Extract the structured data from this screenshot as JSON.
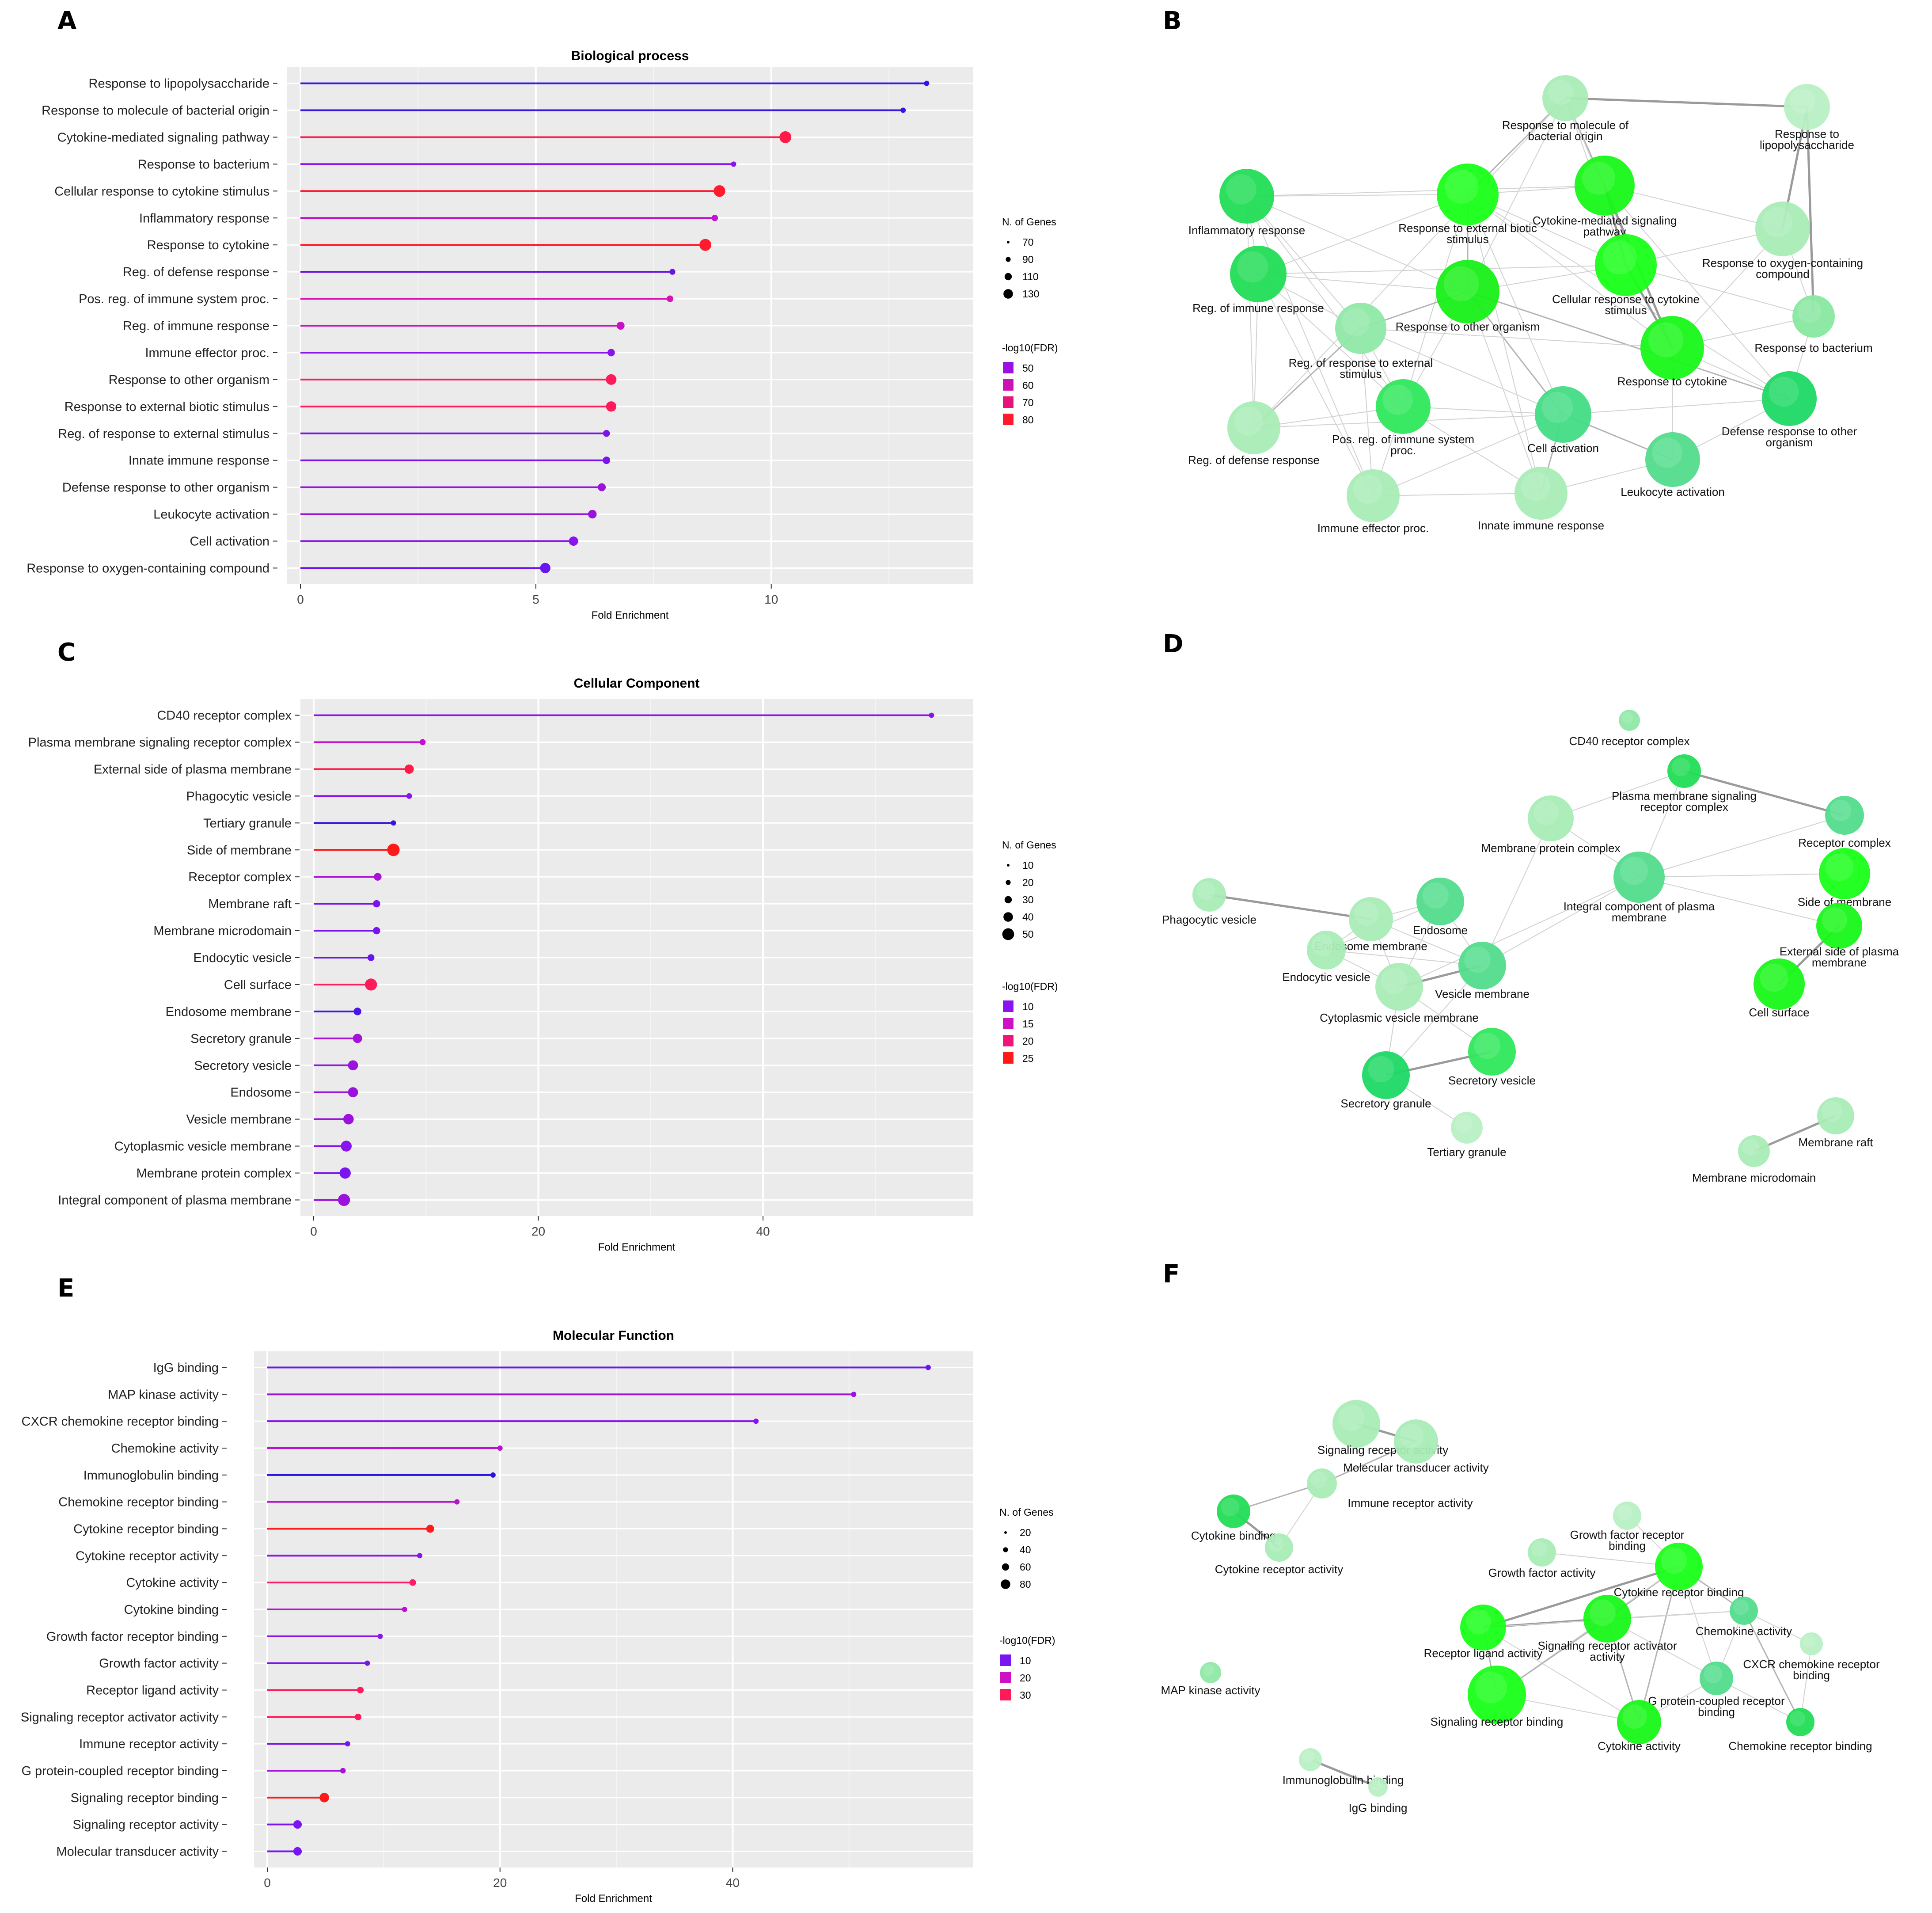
{
  "panels": {
    "A": "A",
    "B": "B",
    "C": "C",
    "D": "D",
    "E": "E",
    "F": "F"
  },
  "chart_data": [
    {
      "id": "A",
      "type": "lollipop",
      "title": "Biological process",
      "xlabel": "Fold Enrichment",
      "xlim": [
        0,
        14
      ],
      "xticks": [
        0,
        5,
        10
      ],
      "size_legend": {
        "title": "N. of Genes",
        "values": [
          70,
          90,
          110,
          130
        ]
      },
      "color_legend": {
        "title": "-log10(FDR)",
        "items": [
          {
            "label": "50",
            "color": "#9b11e0"
          },
          {
            "label": "60",
            "color": "#cc12b4"
          },
          {
            "label": "70",
            "color": "#e8137a"
          },
          {
            "label": "80",
            "color": "#ff1a2e"
          }
        ]
      },
      "categories": [
        "Response to lipopolysaccharide",
        "Response to molecule of bacterial origin",
        "Cytokine-mediated signaling pathway",
        "Response to bacterium",
        "Cellular response to cytokine stimulus",
        "Inflammatory response",
        "Response to cytokine",
        "Reg. of defense response",
        "Pos. reg. of immune system proc.",
        "Reg. of immune response",
        "Immune effector proc.",
        "Response to other organism",
        "Response to external biotic stimulus",
        "Reg. of response to external stimulus",
        "Innate immune response",
        "Defense response to other organism",
        "Leukocyte activation",
        "Cell activation",
        "Response to oxygen-containing compound"
      ],
      "values": [
        13.3,
        12.8,
        10.3,
        9.2,
        8.9,
        8.8,
        8.6,
        7.9,
        7.85,
        6.8,
        6.6,
        6.6,
        6.6,
        6.5,
        6.5,
        6.4,
        6.2,
        5.8,
        5.2
      ],
      "genes": [
        60,
        62,
        120,
        68,
        118,
        78,
        120,
        75,
        80,
        90,
        86,
        110,
        108,
        82,
        86,
        90,
        95,
        100,
        108
      ],
      "colors": [
        "#3a14e0",
        "#3a14e0",
        "#ff1a48",
        "#8a14f0",
        "#ff1a2e",
        "#c212d0",
        "#ff1a2e",
        "#6a14e6",
        "#d812b4",
        "#c812c4",
        "#8a14ec",
        "#ff1a5a",
        "#ff1a5a",
        "#7a14ec",
        "#7a14ec",
        "#9a12dc",
        "#9a12dc",
        "#8a14ec",
        "#6a14f0"
      ]
    },
    {
      "id": "C",
      "type": "lollipop",
      "title": "Cellular Component",
      "xlabel": "Fold Enrichment",
      "xlim": [
        0,
        57.5
      ],
      "xticks": [
        0,
        20,
        40
      ],
      "size_legend": {
        "title": "N. of Genes",
        "values": [
          10,
          20,
          30,
          40,
          50
        ]
      },
      "color_legend": {
        "title": "-log10(FDR)",
        "items": [
          {
            "label": "10",
            "color": "#8a14f0"
          },
          {
            "label": "15",
            "color": "#cc12c4"
          },
          {
            "label": "20",
            "color": "#ee1478"
          },
          {
            "label": "25",
            "color": "#ff1a1a"
          }
        ]
      },
      "categories": [
        "CD40 receptor complex",
        "Plasma membrane signaling receptor complex",
        "External side of plasma membrane",
        "Phagocytic vesicle",
        "Tertiary granule",
        "Side of membrane",
        "Receptor complex",
        "Membrane raft",
        "Membrane microdomain",
        "Endocytic vesicle",
        "Cell surface",
        "Endosome membrane",
        "Secretory granule",
        "Secretory vesicle",
        "Endosome",
        "Vesicle membrane",
        "Cytoplasmic vesicle membrane",
        "Membrane protein complex",
        "Integral component of plasma membrane"
      ],
      "values": [
        55,
        9.7,
        8.5,
        8.5,
        7.1,
        7.1,
        5.7,
        5.6,
        5.6,
        5.1,
        5.1,
        3.9,
        3.9,
        3.5,
        3.5,
        3.1,
        2.9,
        2.8,
        2.7
      ],
      "genes": [
        4,
        14,
        30,
        12,
        10,
        46,
        22,
        20,
        20,
        18,
        44,
        22,
        30,
        34,
        34,
        36,
        38,
        40,
        44
      ],
      "colors": [
        "#8a14f0",
        "#c212d0",
        "#ff1a48",
        "#8a14f0",
        "#3a14e0",
        "#ff1a1a",
        "#a812d8",
        "#7a14ec",
        "#7a14ec",
        "#6a14f0",
        "#ff1a5a",
        "#4a14e6",
        "#a812d8",
        "#9a12dc",
        "#9a12dc",
        "#9a12dc",
        "#8a14ec",
        "#7a14f0",
        "#9a12dc"
      ]
    },
    {
      "id": "E",
      "type": "lollipop",
      "title": "Molecular Function",
      "xlabel": "Fold Enrichment",
      "xlim": [
        0,
        59.5
      ],
      "xticks": [
        0,
        20,
        40
      ],
      "size_legend": {
        "title": "N. of Genes",
        "values": [
          20,
          40,
          60,
          80
        ]
      },
      "color_legend": {
        "title": "-log10(FDR)",
        "items": [
          {
            "label": "10",
            "color": "#7a14f0"
          },
          {
            "label": "20",
            "color": "#cc12c4"
          },
          {
            "label": "30",
            "color": "#ff1a5a"
          }
        ]
      },
      "categories": [
        "IgG binding",
        "MAP kinase activity",
        "CXCR chemokine receptor binding",
        "Chemokine activity",
        "Immunoglobulin binding",
        "Chemokine receptor binding",
        "Cytokine receptor binding",
        "Cytokine receptor activity",
        "Cytokine activity",
        "Cytokine binding",
        "Growth factor receptor binding",
        "Growth factor activity",
        "Receptor ligand activity",
        "Signaling receptor activator activity",
        "Immune receptor activity",
        "G protein-coupled receptor binding",
        "Signaling receptor binding",
        "Signaling receptor activity",
        "Molecular transducer activity"
      ],
      "values": [
        56.8,
        50.4,
        42,
        20,
        19.4,
        16.3,
        14,
        13.1,
        12.5,
        11.8,
        9.7,
        8.6,
        8,
        7.8,
        6.9,
        6.5,
        4.9,
        2.6,
        2.6
      ],
      "genes": [
        6,
        8,
        10,
        16,
        8,
        20,
        40,
        18,
        30,
        16,
        16,
        18,
        30,
        30,
        18,
        22,
        52,
        44,
        44
      ],
      "colors": [
        "#6a14f0",
        "#9a12dc",
        "#8a14f0",
        "#b812d0",
        "#2a14e0",
        "#b812d0",
        "#ff1a1a",
        "#8a14ec",
        "#ff1a6a",
        "#b812d0",
        "#8a14ec",
        "#7a14ec",
        "#ff1a5a",
        "#ff1a5a",
        "#7a14ec",
        "#a812d8",
        "#ff1a1a",
        "#7a14f0",
        "#7a14f0"
      ]
    }
  ],
  "networks": [
    {
      "id": "B",
      "nodes": [
        {
          "label": "Response to molecule of bacterial origin",
          "lines": [
            "Response to molecule of",
            "bacterial origin"
          ]
        },
        {
          "label": "Response to lipopolysaccharide",
          "lines": [
            "Response to",
            "lipopolysaccharide"
          ]
        },
        {
          "label": "Inflammatory response",
          "lines": [
            "Inflammatory response"
          ]
        },
        {
          "label": "Response to external biotic stimulus",
          "lines": [
            "Response to external biotic",
            "stimulus"
          ]
        },
        {
          "label": "Cytokine-mediated signaling pathway",
          "lines": [
            "Cytokine-mediated signaling",
            "pathway"
          ]
        },
        {
          "label": "Response to oxygen-containing compound",
          "lines": [
            "Response to oxygen-containing",
            "compound"
          ]
        },
        {
          "label": "Reg. of immune response",
          "lines": [
            "Reg. of immune response"
          ]
        },
        {
          "label": "Response to other organism",
          "lines": [
            "Response to other organism"
          ]
        },
        {
          "label": "Cellular response to cytokine stimulus",
          "lines": [
            "Cellular response to cytokine",
            "stimulus"
          ]
        },
        {
          "label": "Reg. of response to external stimulus",
          "lines": [
            "Reg. of response to external",
            "stimulus"
          ]
        },
        {
          "label": "Response to bacterium",
          "lines": [
            "Response to bacterium"
          ]
        },
        {
          "label": "Response to cytokine",
          "lines": [
            "Response to cytokine"
          ]
        },
        {
          "label": "Pos. reg. of immune system proc.",
          "lines": [
            "Pos. reg. of immune system",
            "proc."
          ]
        },
        {
          "label": "Cell activation",
          "lines": [
            "Cell activation"
          ]
        },
        {
          "label": "Defense response to other organism",
          "lines": [
            "Defense response to other",
            "organism"
          ]
        },
        {
          "label": "Reg. of defense response",
          "lines": [
            "Reg. of defense response"
          ]
        },
        {
          "label": "Leukocyte activation",
          "lines": [
            "Leukocyte activation"
          ]
        },
        {
          "label": "Immune effector proc.",
          "lines": [
            "Immune effector proc."
          ]
        },
        {
          "label": "Innate immune response",
          "lines": [
            "Innate immune response"
          ]
        }
      ]
    },
    {
      "id": "D",
      "nodes": [
        {
          "label": "CD40 receptor complex",
          "lines": [
            "CD40 receptor complex"
          ]
        },
        {
          "label": "Plasma membrane signaling receptor complex",
          "lines": [
            "Plasma membrane signaling",
            "receptor complex"
          ]
        },
        {
          "label": "Receptor complex",
          "lines": [
            "Receptor complex"
          ]
        },
        {
          "label": "Membrane protein complex",
          "lines": [
            "Membrane protein complex"
          ]
        },
        {
          "label": "Integral component of plasma membrane",
          "lines": [
            "Integral component of plasma",
            "membrane"
          ]
        },
        {
          "label": "Side of membrane",
          "lines": [
            "Side of membrane"
          ]
        },
        {
          "label": "External side of plasma membrane",
          "lines": [
            "External side of plasma",
            "membrane"
          ]
        },
        {
          "label": "Cell surface",
          "lines": [
            "Cell surface"
          ]
        },
        {
          "label": "Phagocytic vesicle",
          "lines": [
            "Phagocytic vesicle"
          ]
        },
        {
          "label": "Endosome",
          "lines": [
            "Endosome"
          ]
        },
        {
          "label": "Endosome membrane",
          "lines": [
            "Endosome membrane"
          ]
        },
        {
          "label": "Endocytic vesicle",
          "lines": [
            "Endocytic vesicle"
          ]
        },
        {
          "label": "Vesicle membrane",
          "lines": [
            "Vesicle membrane"
          ]
        },
        {
          "label": "Cytoplasmic vesicle membrane",
          "lines": [
            "Cytoplasmic vesicle membrane"
          ]
        },
        {
          "label": "Secretory vesicle",
          "lines": [
            "Secretory vesicle"
          ]
        },
        {
          "label": "Secretory granule",
          "lines": [
            "Secretory granule"
          ]
        },
        {
          "label": "Tertiary granule",
          "lines": [
            "Tertiary granule"
          ]
        },
        {
          "label": "Membrane raft",
          "lines": [
            "Membrane raft"
          ]
        },
        {
          "label": "Membrane microdomain",
          "lines": [
            "Membrane microdomain"
          ]
        }
      ]
    },
    {
      "id": "F",
      "nodes": [
        {
          "label": "Signaling receptor activity",
          "lines": [
            "Signaling receptor activity"
          ]
        },
        {
          "label": "Molecular transducer activity",
          "lines": [
            "Molecular transducer activity"
          ]
        },
        {
          "label": "Immune receptor activity",
          "lines": [
            "Immune receptor activity"
          ]
        },
        {
          "label": "Cytokine binding",
          "lines": [
            "Cytokine binding"
          ]
        },
        {
          "label": "Cytokine receptor activity",
          "lines": [
            "Cytokine receptor activity"
          ]
        },
        {
          "label": "Growth factor receptor binding",
          "lines": [
            "Growth factor receptor",
            "binding"
          ]
        },
        {
          "label": "Growth factor activity",
          "lines": [
            "Growth factor activity"
          ]
        },
        {
          "label": "Cytokine receptor binding",
          "lines": [
            "Cytokine receptor binding"
          ]
        },
        {
          "label": "Receptor ligand activity",
          "lines": [
            "Receptor ligand activity"
          ]
        },
        {
          "label": "Signaling receptor activator activity",
          "lines": [
            "Signaling receptor activator",
            "activity"
          ]
        },
        {
          "label": "Chemokine activity",
          "lines": [
            "Chemokine activity"
          ]
        },
        {
          "label": "CXCR chemokine receptor binding",
          "lines": [
            "CXCR chemokine receptor",
            "binding"
          ]
        },
        {
          "label": "MAP kinase activity",
          "lines": [
            "MAP kinase activity"
          ]
        },
        {
          "label": "G protein-coupled receptor binding",
          "lines": [
            "G protein-coupled receptor",
            "binding"
          ]
        },
        {
          "label": "Signaling receptor binding",
          "lines": [
            "Signaling receptor binding"
          ]
        },
        {
          "label": "Cytokine activity",
          "lines": [
            "Cytokine activity"
          ]
        },
        {
          "label": "Chemokine receptor binding",
          "lines": [
            "Chemokine receptor binding"
          ]
        },
        {
          "label": "Immunoglobulin binding",
          "lines": [
            "Immunoglobulin binding"
          ]
        },
        {
          "label": "IgG binding",
          "lines": [
            "IgG binding"
          ]
        }
      ]
    }
  ]
}
